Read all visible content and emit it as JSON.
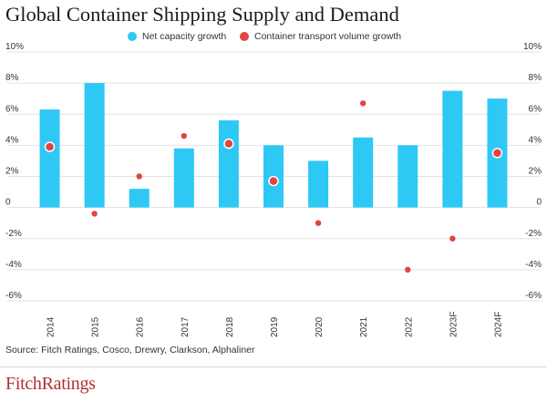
{
  "title": "Global Container Shipping Supply and Demand",
  "source": "Source: Fitch Ratings, Cosco, Drewry, Clarkson, Alphaliner",
  "logo": "FitchRatings",
  "colors": {
    "bar": "#2ec8f5",
    "dot": "#e0453f",
    "grid": "#e3e3e3",
    "dot_stroke": "#ffffff"
  },
  "chart_data": {
    "type": "bar",
    "categories": [
      "2014",
      "2015",
      "2016",
      "2017",
      "2018",
      "2019",
      "2020",
      "2021",
      "2022",
      "2023F",
      "2024F"
    ],
    "series": [
      {
        "name": "Net capacity growth",
        "type": "bar",
        "values": [
          6.3,
          8.0,
          1.2,
          3.8,
          5.6,
          4.0,
          3.0,
          4.5,
          4.0,
          7.5,
          7.0
        ]
      },
      {
        "name": "Container transport volume growth",
        "type": "scatter",
        "values": [
          3.9,
          -0.4,
          2.0,
          4.6,
          4.1,
          1.7,
          -1.0,
          6.7,
          -4.0,
          -2.0,
          3.5
        ]
      }
    ],
    "ylim": [
      -6,
      10
    ],
    "yticks": [
      "-6%",
      "-4%",
      "-2%",
      "0",
      "2%",
      "4%",
      "6%",
      "8%",
      "10%"
    ],
    "ytick_values": [
      -6,
      -4,
      -2,
      0,
      2,
      4,
      6,
      8,
      10
    ],
    "legend_position": "top-center",
    "grid": true,
    "dual_axis_labels": true
  }
}
